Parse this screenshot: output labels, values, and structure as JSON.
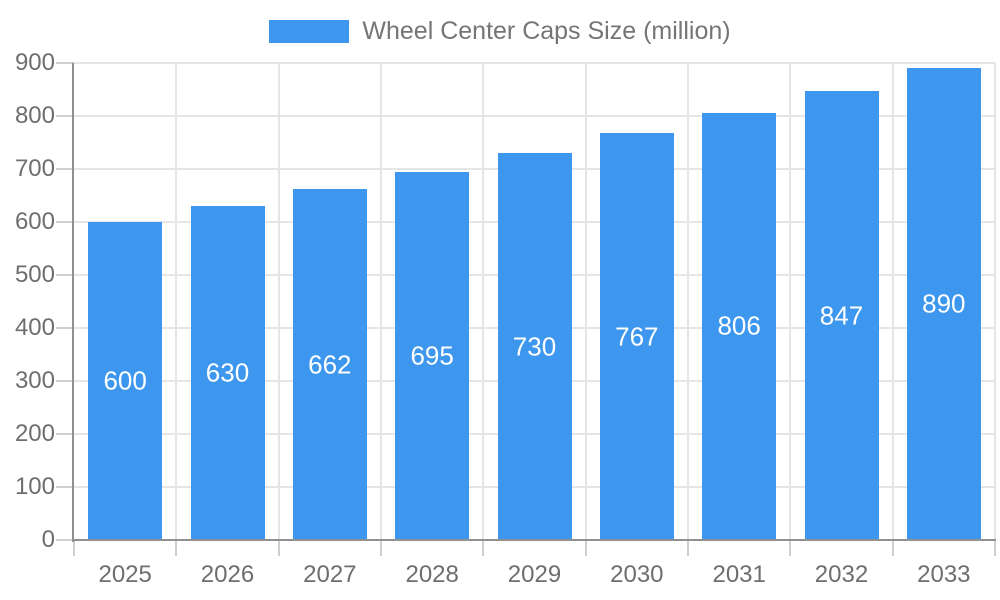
{
  "legend": {
    "label": "Wheel Center Caps Size (million)"
  },
  "chart_data": {
    "type": "bar",
    "title": "Wheel Center Caps Size (million)",
    "categories": [
      "2025",
      "2026",
      "2027",
      "2028",
      "2029",
      "2030",
      "2031",
      "2032",
      "2033"
    ],
    "values": [
      600,
      630,
      662,
      695,
      730,
      767,
      806,
      847,
      890
    ],
    "xlabel": "",
    "ylabel": "",
    "ylim": [
      0,
      900
    ],
    "ytick_step": 100,
    "ytick_labels": [
      "0",
      "100",
      "200",
      "300",
      "400",
      "500",
      "600",
      "700",
      "800",
      "900"
    ],
    "grid": true,
    "legend_position": "top",
    "colors": {
      "bar": "#3D97EE",
      "value_label": "#FFFFFF",
      "axis_label": "#6E6E6E",
      "legend_text": "#757575",
      "axis_line": "#909090",
      "gridline": "#E5E5E5",
      "tick": "#CFCFCF",
      "background": "#FFFFFF"
    }
  }
}
